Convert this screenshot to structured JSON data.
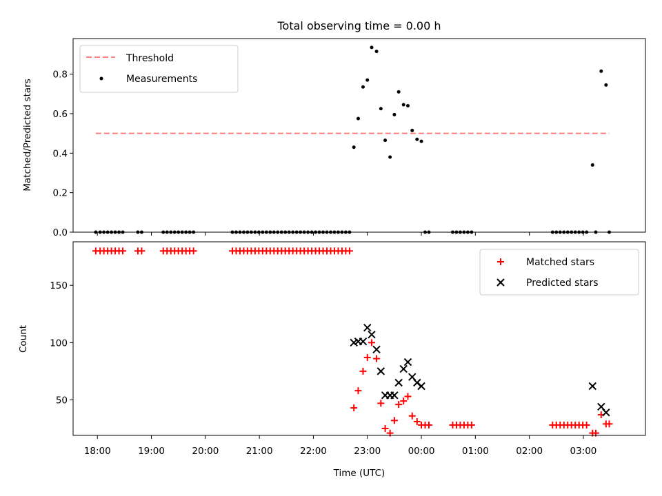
{
  "chart_data": {
    "type": "scatter",
    "title": "Total observing time = 0.00 h",
    "panels": [
      {
        "name": "ratio",
        "ylabel": "Matched/Predicted stars",
        "ylim": [
          0,
          0.98
        ],
        "yticks": [
          0.0,
          0.2,
          0.4,
          0.6,
          0.8
        ],
        "ytick_labels": [
          "0.0",
          "0.2",
          "0.4",
          "0.6",
          "0.8"
        ],
        "legend_position": "top-left",
        "threshold": {
          "name": "Threshold",
          "x_start": 17.97,
          "x_end": 27.48,
          "value": 0.5,
          "color": "#ff7f7f"
        },
        "series": [
          {
            "name": "Measurements",
            "marker": "dot",
            "color": "#000000",
            "points": [
              [
                17.97,
                0
              ],
              [
                18.05,
                0
              ],
              [
                18.12,
                0
              ],
              [
                18.19,
                0
              ],
              [
                18.26,
                0
              ],
              [
                18.33,
                0
              ],
              [
                18.4,
                0
              ],
              [
                18.47,
                0
              ],
              [
                18.75,
                0
              ],
              [
                18.82,
                0
              ],
              [
                19.22,
                0
              ],
              [
                19.29,
                0
              ],
              [
                19.36,
                0
              ],
              [
                19.43,
                0
              ],
              [
                19.5,
                0
              ],
              [
                19.57,
                0
              ],
              [
                19.64,
                0
              ],
              [
                19.71,
                0
              ],
              [
                19.78,
                0
              ],
              [
                20.5,
                0
              ],
              [
                20.57,
                0
              ],
              [
                20.64,
                0
              ],
              [
                20.71,
                0
              ],
              [
                20.78,
                0
              ],
              [
                20.85,
                0
              ],
              [
                20.92,
                0
              ],
              [
                20.99,
                0
              ],
              [
                21.06,
                0
              ],
              [
                21.13,
                0
              ],
              [
                21.2,
                0
              ],
              [
                21.27,
                0
              ],
              [
                21.34,
                0
              ],
              [
                21.41,
                0
              ],
              [
                21.48,
                0
              ],
              [
                21.55,
                0
              ],
              [
                21.62,
                0
              ],
              [
                21.69,
                0
              ],
              [
                21.76,
                0
              ],
              [
                21.83,
                0
              ],
              [
                21.9,
                0
              ],
              [
                21.97,
                0
              ],
              [
                22.04,
                0
              ],
              [
                22.11,
                0
              ],
              [
                22.18,
                0
              ],
              [
                22.25,
                0
              ],
              [
                22.32,
                0
              ],
              [
                22.39,
                0
              ],
              [
                22.46,
                0
              ],
              [
                22.53,
                0
              ],
              [
                22.6,
                0
              ],
              [
                22.67,
                0
              ],
              [
                22.75,
                0.43
              ],
              [
                22.83,
                0.575
              ],
              [
                22.92,
                0.735
              ],
              [
                23.0,
                0.77
              ],
              [
                23.08,
                0.935
              ],
              [
                23.17,
                0.915
              ],
              [
                23.25,
                0.625
              ],
              [
                23.33,
                0.465
              ],
              [
                23.42,
                0.38
              ],
              [
                23.5,
                0.595
              ],
              [
                23.58,
                0.71
              ],
              [
                23.67,
                0.645
              ],
              [
                23.75,
                0.64
              ],
              [
                23.83,
                0.515
              ],
              [
                23.92,
                0.47
              ],
              [
                24.0,
                0.46
              ],
              [
                24.07,
                0
              ],
              [
                24.14,
                0
              ],
              [
                24.58,
                0
              ],
              [
                24.65,
                0
              ],
              [
                24.72,
                0
              ],
              [
                24.79,
                0
              ],
              [
                24.86,
                0
              ],
              [
                24.93,
                0
              ],
              [
                26.43,
                0
              ],
              [
                26.5,
                0
              ],
              [
                26.57,
                0
              ],
              [
                26.64,
                0
              ],
              [
                26.71,
                0
              ],
              [
                26.78,
                0
              ],
              [
                26.85,
                0
              ],
              [
                26.92,
                0
              ],
              [
                26.99,
                0
              ],
              [
                27.06,
                0
              ],
              [
                27.17,
                0.34
              ],
              [
                27.23,
                0
              ],
              [
                27.33,
                0.815
              ],
              [
                27.42,
                0.745
              ],
              [
                27.48,
                0
              ]
            ]
          }
        ]
      },
      {
        "name": "count",
        "ylabel": "Count",
        "ylim": [
          19,
          188
        ],
        "yticks": [
          50,
          100,
          150
        ],
        "ytick_labels": [
          "50",
          "100",
          "150"
        ],
        "legend_position": "top-right",
        "series": [
          {
            "name": "Matched stars",
            "marker": "plus",
            "color": "#ff0000",
            "points": [
              [
                17.97,
                180
              ],
              [
                18.05,
                180
              ],
              [
                18.12,
                180
              ],
              [
                18.19,
                180
              ],
              [
                18.26,
                180
              ],
              [
                18.33,
                180
              ],
              [
                18.4,
                180
              ],
              [
                18.47,
                180
              ],
              [
                18.75,
                180
              ],
              [
                18.82,
                180
              ],
              [
                19.22,
                180
              ],
              [
                19.29,
                180
              ],
              [
                19.36,
                180
              ],
              [
                19.43,
                180
              ],
              [
                19.5,
                180
              ],
              [
                19.57,
                180
              ],
              [
                19.64,
                180
              ],
              [
                19.71,
                180
              ],
              [
                19.78,
                180
              ],
              [
                20.5,
                180
              ],
              [
                20.57,
                180
              ],
              [
                20.64,
                180
              ],
              [
                20.71,
                180
              ],
              [
                20.78,
                180
              ],
              [
                20.85,
                180
              ],
              [
                20.92,
                180
              ],
              [
                20.99,
                180
              ],
              [
                21.06,
                180
              ],
              [
                21.13,
                180
              ],
              [
                21.2,
                180
              ],
              [
                21.27,
                180
              ],
              [
                21.34,
                180
              ],
              [
                21.41,
                180
              ],
              [
                21.48,
                180
              ],
              [
                21.55,
                180
              ],
              [
                21.62,
                180
              ],
              [
                21.69,
                180
              ],
              [
                21.76,
                180
              ],
              [
                21.83,
                180
              ],
              [
                21.9,
                180
              ],
              [
                21.97,
                180
              ],
              [
                22.04,
                180
              ],
              [
                22.11,
                180
              ],
              [
                22.18,
                180
              ],
              [
                22.25,
                180
              ],
              [
                22.32,
                180
              ],
              [
                22.39,
                180
              ],
              [
                22.46,
                180
              ],
              [
                22.53,
                180
              ],
              [
                22.6,
                180
              ],
              [
                22.67,
                180
              ],
              [
                22.75,
                43
              ],
              [
                22.83,
                58
              ],
              [
                22.92,
                75
              ],
              [
                23.0,
                87
              ],
              [
                23.08,
                100
              ],
              [
                23.17,
                86
              ],
              [
                23.25,
                47
              ],
              [
                23.33,
                25
              ],
              [
                23.42,
                21
              ],
              [
                23.5,
                32
              ],
              [
                23.58,
                46
              ],
              [
                23.67,
                49
              ],
              [
                23.75,
                53
              ],
              [
                23.83,
                36
              ],
              [
                23.92,
                31
              ],
              [
                24.0,
                28
              ],
              [
                24.07,
                28
              ],
              [
                24.14,
                28
              ],
              [
                24.58,
                28
              ],
              [
                24.65,
                28
              ],
              [
                24.72,
                28
              ],
              [
                24.79,
                28
              ],
              [
                24.86,
                28
              ],
              [
                24.93,
                28
              ],
              [
                26.43,
                28
              ],
              [
                26.5,
                28
              ],
              [
                26.57,
                28
              ],
              [
                26.64,
                28
              ],
              [
                26.71,
                28
              ],
              [
                26.78,
                28
              ],
              [
                26.85,
                28
              ],
              [
                26.92,
                28
              ],
              [
                26.99,
                28
              ],
              [
                27.06,
                28
              ],
              [
                27.17,
                21
              ],
              [
                27.23,
                21
              ],
              [
                27.33,
                37
              ],
              [
                27.42,
                29
              ],
              [
                27.48,
                29
              ]
            ]
          },
          {
            "name": "Predicted stars",
            "marker": "x",
            "color": "#000000",
            "points": [
              [
                22.75,
                100
              ],
              [
                22.83,
                101
              ],
              [
                22.92,
                101
              ],
              [
                23.0,
                113
              ],
              [
                23.08,
                107
              ],
              [
                23.17,
                94
              ],
              [
                23.25,
                75
              ],
              [
                23.33,
                54
              ],
              [
                23.42,
                54
              ],
              [
                23.5,
                54
              ],
              [
                23.58,
                65
              ],
              [
                23.67,
                77
              ],
              [
                23.75,
                83
              ],
              [
                23.83,
                70
              ],
              [
                23.92,
                65
              ],
              [
                24.0,
                62
              ],
              [
                27.17,
                62
              ],
              [
                27.33,
                44
              ],
              [
                27.42,
                39
              ]
            ]
          }
        ]
      }
    ],
    "x_axis": {
      "label": "Time (UTC)",
      "range": [
        17.55,
        28.15
      ],
      "ticks": [
        18,
        19,
        20,
        21,
        22,
        23,
        24,
        25,
        26,
        27
      ],
      "tick_labels": [
        "18:00",
        "19:00",
        "20:00",
        "21:00",
        "22:00",
        "23:00",
        "00:00",
        "01:00",
        "02:00",
        "03:00"
      ]
    },
    "colors": {
      "threshold": "#ff7f7f",
      "matched": "#ff0000",
      "predicted": "#000000",
      "measurements": "#000000",
      "axes": "#000000",
      "legend_border": "#cccccc"
    }
  }
}
